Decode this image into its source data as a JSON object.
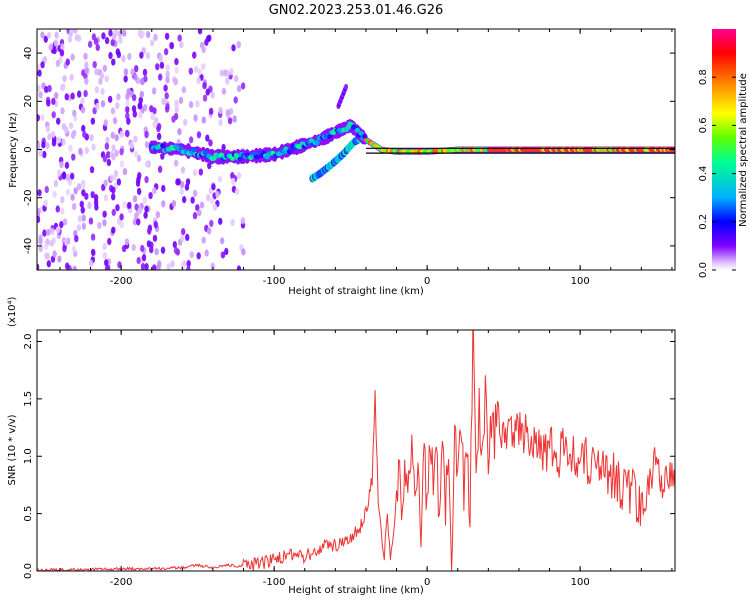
{
  "figure_title": "GN02.2023.253.01.46.G26",
  "chart_data": [
    {
      "type": "heatmap",
      "name": "spectrogram",
      "xlabel": "Height of straight line (km)",
      "ylabel": "Frequency (Hz)",
      "xlim": [
        -255,
        162
      ],
      "ylim": [
        -50,
        50
      ],
      "xticks": [
        -200,
        -100,
        0,
        100
      ],
      "xtick_labels": [
        "-200",
        "-100",
        "0",
        "100"
      ],
      "yticks": [
        -40,
        -20,
        0,
        20,
        40
      ],
      "ytick_labels": [
        "-40",
        "-20",
        "0",
        "20",
        "40"
      ],
      "colorbar": {
        "label": "Normalized spectral amplitude",
        "range": [
          0,
          1
        ],
        "ticks": [
          0.0,
          0.2,
          0.4,
          0.6,
          0.8
        ],
        "tick_labels": [
          "0.0",
          "0.2",
          "0.4",
          "0.6",
          "0.8"
        ],
        "colors": [
          "#ffffff",
          "#d8b0ff",
          "#8000ff",
          "#0000ff",
          "#00c0ff",
          "#00ff80",
          "#80ff00",
          "#ffff00",
          "#ff8000",
          "#ff0000",
          "#ff0080"
        ]
      },
      "main_trace": {
        "x": [
          -180,
          -160,
          -140,
          -120,
          -100,
          -90,
          -80,
          -70,
          -60,
          -50,
          -40,
          -30,
          -20,
          -10,
          0,
          20,
          40,
          60,
          80,
          100,
          120,
          140,
          162
        ],
        "y": [
          1,
          0,
          -3,
          -3,
          -2,
          0,
          2,
          4,
          7,
          10,
          4,
          0,
          -1,
          -1,
          -1,
          0,
          0,
          0,
          0,
          0,
          0,
          0,
          0
        ]
      },
      "branch_trace": {
        "x": [
          -75,
          -70,
          -62,
          -55,
          -48,
          -42
        ],
        "y": [
          -12,
          -10,
          -6,
          -2,
          3,
          5
        ]
      },
      "upper_blob": {
        "x": [
          -58,
          -53
        ],
        "y": [
          18,
          26
        ]
      },
      "reference_line": {
        "y": [
          0.5,
          -1.5
        ],
        "x_start": -40,
        "x_end": 162
      }
    },
    {
      "type": "line",
      "name": "snr",
      "xlabel": "Height of straight line (km)",
      "ylabel": "SNR (10 * v/v)",
      "scale_label": "(x10⁴)",
      "color": "#ee3333",
      "xlim": [
        -255,
        162
      ],
      "ylim": [
        0,
        2.1
      ],
      "xticks": [
        -200,
        -100,
        0,
        100
      ],
      "xtick_labels": [
        "-200",
        "-100",
        "0",
        "100"
      ],
      "yticks": [
        0.0,
        0.5,
        1.0,
        1.5,
        2.0
      ],
      "ytick_labels": [
        "0.0",
        "0.5",
        "1.0",
        "1.5",
        "2.0"
      ],
      "series": [
        {
          "name": "SNR",
          "x": [
            -255,
            -230,
            -200,
            -180,
            -160,
            -150,
            -140,
            -130,
            -120,
            -110,
            -100,
            -90,
            -80,
            -70,
            -60,
            -50,
            -45,
            -40,
            -36,
            -34,
            -32,
            -30,
            -28,
            -26,
            -24,
            -22,
            -20,
            -18,
            -16,
            -14,
            -12,
            -10,
            -8,
            -6,
            -4,
            -2,
            0,
            2,
            4,
            6,
            8,
            10,
            12,
            14,
            16,
            18,
            20,
            22,
            24,
            26,
            28,
            30,
            32,
            34,
            36,
            38,
            40,
            42,
            44,
            46,
            48,
            50,
            55,
            60,
            65,
            70,
            75,
            80,
            85,
            90,
            95,
            100,
            105,
            110,
            115,
            120,
            125,
            130,
            135,
            140,
            145,
            150,
            155,
            160,
            162
          ],
          "y": [
            0.01,
            0.01,
            0.02,
            0.02,
            0.03,
            0.05,
            0.03,
            0.05,
            0.04,
            0.06,
            0.1,
            0.14,
            0.12,
            0.2,
            0.22,
            0.3,
            0.35,
            0.5,
            0.8,
            1.55,
            0.6,
            0.35,
            0.15,
            0.5,
            0.1,
            0.3,
            0.6,
            0.85,
            0.5,
            0.95,
            0.7,
            1.1,
            0.45,
            0.9,
            0.4,
            1.05,
            0.5,
            1.2,
            0.8,
            1.1,
            0.3,
            1.25,
            0.6,
            1.0,
            0.1,
            1.3,
            0.8,
            1.4,
            0.7,
            1.0,
            0.5,
            2.05,
            0.9,
            1.4,
            1.1,
            1.5,
            0.9,
            1.35,
            1.1,
            1.55,
            1.25,
            1.3,
            1.2,
            1.3,
            1.15,
            1.2,
            1.1,
            1.05,
            1.0,
            1.1,
            0.95,
            1.0,
            0.95,
            1.0,
            0.9,
            0.85,
            0.75,
            0.65,
            0.7,
            0.55,
            0.75,
            0.9,
            0.8,
            0.95,
            0.7
          ]
        }
      ]
    }
  ]
}
